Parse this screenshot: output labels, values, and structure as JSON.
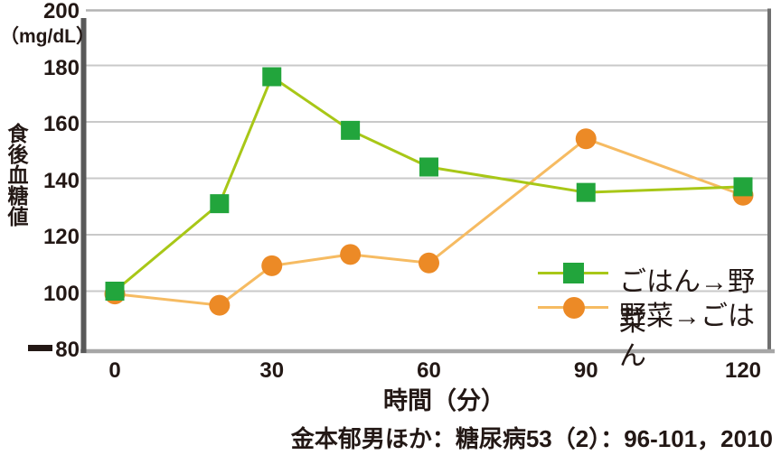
{
  "chart_data": {
    "type": "line",
    "x": [
      0,
      20,
      30,
      45,
      60,
      90,
      120
    ],
    "x_ticks": [
      0,
      30,
      60,
      90,
      120
    ],
    "xlabel": "時間（分）",
    "ylabel": "食後血糖値",
    "y_unit": "（mg/dL）",
    "ylim": [
      80,
      200
    ],
    "xlim": [
      0,
      125
    ],
    "y_ticks": [
      80,
      100,
      120,
      140,
      160,
      180,
      200
    ],
    "grid": "horizontal",
    "legend_position": "inside-bottom-right",
    "series": [
      {
        "name": "ごはん→野菜",
        "marker": "square",
        "marker_color": "#22a53c",
        "line_color": "#a8c717",
        "values": [
          100,
          131,
          176,
          157,
          144,
          135,
          137
        ]
      },
      {
        "name": "野菜→ごはん",
        "marker": "circle",
        "marker_color": "#ec8a26",
        "line_color": "#f6bb62",
        "values": [
          99,
          95,
          109,
          113,
          110,
          154,
          134
        ]
      }
    ],
    "caption": "金本郁男ほか：糖尿病53（2）：96-101，2010"
  },
  "colors": {
    "text": "#231815",
    "gridline": "#c9c9c9",
    "axis_left": "#595959",
    "axis_bottom": "#a6a6a6",
    "border_top": "#b3b3b3",
    "border_right": "#6f6f6f",
    "green_marker": "#22a53c",
    "green_line": "#a8c717",
    "orange_marker": "#ec8a26",
    "orange_line": "#f6bb62"
  }
}
